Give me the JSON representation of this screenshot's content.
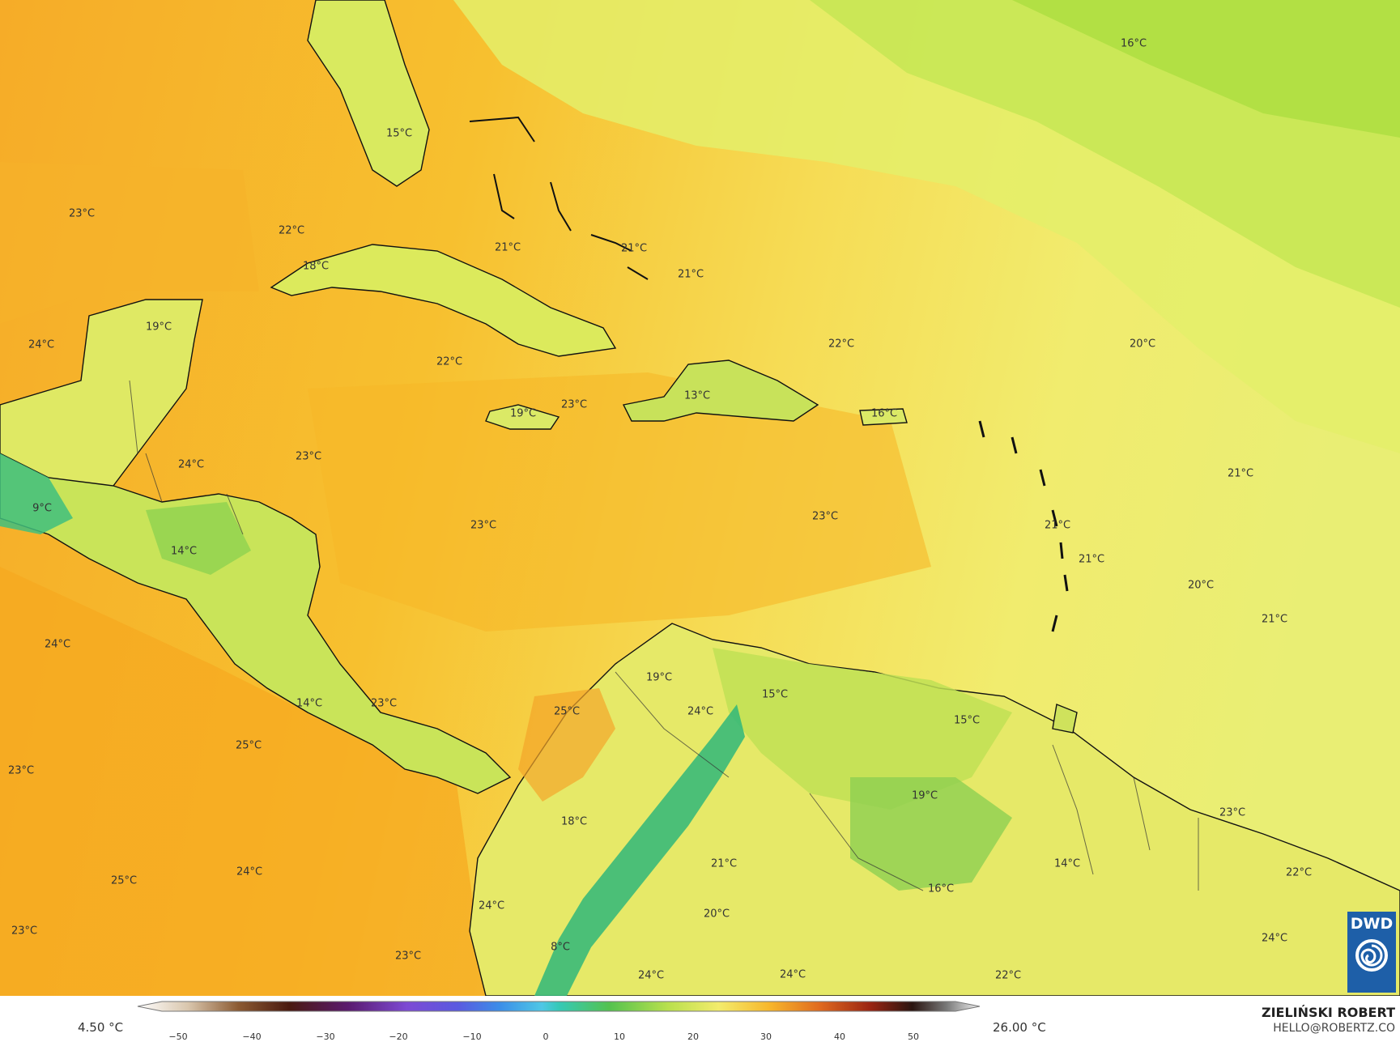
{
  "map": {
    "temperature_labels": [
      "16°C",
      "15°C",
      "23°C",
      "22°C",
      "21°C",
      "21°C",
      "21°C",
      "18°C",
      "19°C",
      "24°C",
      "22°C",
      "20°C",
      "13°C",
      "22°C",
      "16°C",
      "19°C",
      "23°C",
      "24°C",
      "23°C",
      "21°C",
      "9°C",
      "23°C",
      "23°C",
      "14°C",
      "21°C",
      "21°C",
      "20°C",
      "24°C",
      "19°C",
      "21°C",
      "15°C",
      "15°C",
      "25°C",
      "24°C",
      "14°C",
      "23°C",
      "25°C",
      "23°C",
      "19°C",
      "23°C",
      "18°C",
      "14°C",
      "22°C",
      "24°C",
      "21°C",
      "25°C",
      "16°C",
      "24°C",
      "20°C",
      "24°C",
      "23°C",
      "8°C",
      "23°C",
      "24°C",
      "24°C",
      "22°C"
    ]
  },
  "legend": {
    "min_value": "4.50 °C",
    "max_value": "26.00 °C",
    "ticks": [
      "−50",
      "−40",
      "−30",
      "−20",
      "−10",
      "0",
      "10",
      "20",
      "30",
      "40",
      "50"
    ]
  },
  "logo": {
    "text": "DWD"
  },
  "credit": {
    "name": "ZIELIŃSKI ROBERT",
    "email": "HELLO@ROBERTZ.CO"
  },
  "colors": {
    "warm": "#f7b526",
    "mild": "#f5e46a",
    "cool": "#b7e14a",
    "cold": "#2db57a",
    "logo": "#1e5fa8"
  }
}
